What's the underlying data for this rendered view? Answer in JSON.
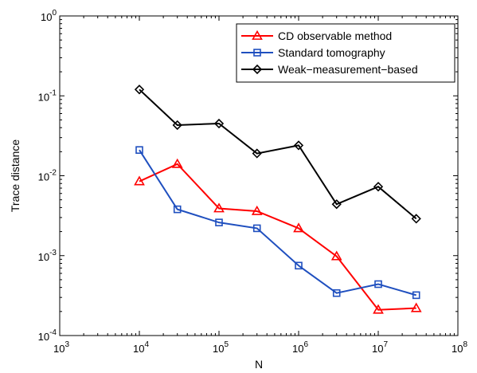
{
  "chart_data": {
    "type": "line",
    "xscale": "log",
    "yscale": "log",
    "xlabel": "N",
    "ylabel": "Trace distance",
    "xlim": [
      1000,
      100000000
    ],
    "ylim": [
      0.0001,
      1
    ],
    "grid": false,
    "legend_position": "top-right",
    "x_tick_labels": [
      {
        "base": "10",
        "exp": "3"
      },
      {
        "base": "10",
        "exp": "4"
      },
      {
        "base": "10",
        "exp": "5"
      },
      {
        "base": "10",
        "exp": "6"
      },
      {
        "base": "10",
        "exp": "7"
      },
      {
        "base": "10",
        "exp": "8"
      }
    ],
    "y_tick_labels": [
      {
        "base": "10",
        "exp": "-4"
      },
      {
        "base": "10",
        "exp": "-3"
      },
      {
        "base": "10",
        "exp": "-2"
      },
      {
        "base": "10",
        "exp": "-1"
      },
      {
        "base": "10",
        "exp": "0"
      }
    ],
    "x": [
      10000,
      30000,
      100000,
      300000,
      1000000,
      3000000,
      10000000,
      30000000
    ],
    "series": [
      {
        "name": "CD observable method",
        "color": "#ff0000",
        "marker": "triangle",
        "values": [
          0.0085,
          0.014,
          0.0039,
          0.0036,
          0.0022,
          0.00098,
          0.00021,
          0.00022
        ]
      },
      {
        "name": "Standard tomography",
        "color": "#1f4fbf",
        "marker": "square",
        "values": [
          0.021,
          0.0038,
          0.0026,
          0.0022,
          0.00075,
          0.00034,
          0.00044,
          0.00032
        ]
      },
      {
        "name": "Weak−measurement−based",
        "color": "#000000",
        "marker": "diamond",
        "values": [
          0.12,
          0.043,
          0.045,
          0.019,
          0.024,
          0.0044,
          0.0073,
          0.0029
        ]
      }
    ]
  }
}
